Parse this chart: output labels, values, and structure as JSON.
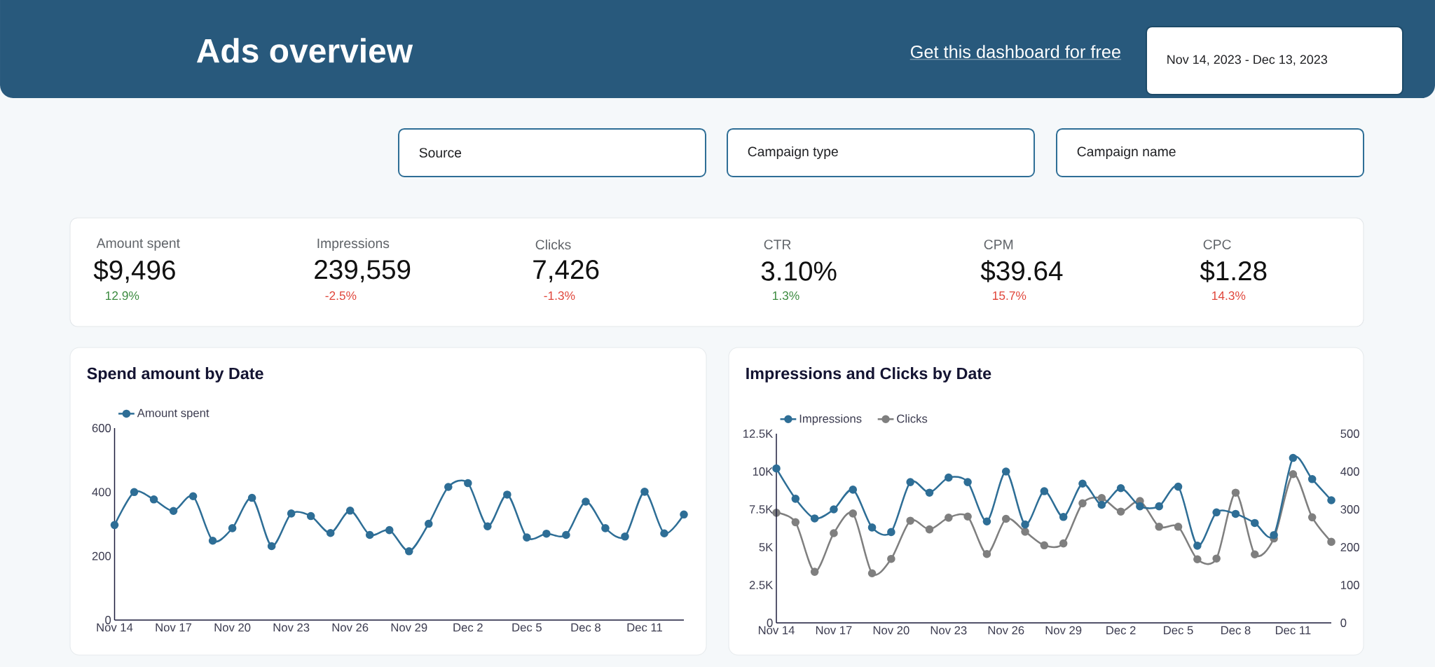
{
  "chart_data": [
    {
      "type": "other",
      "title": "Ads overview",
      "annotations": [
        "Get this dashboard for free",
        "Nov 14, 2023 - Dec 13, 2023",
        "Source",
        "Campaign type",
        "Campaign name"
      ]
    },
    {
      "type": "other",
      "annotations": [
        "Amount spent",
        "$9,496",
        "12.9%",
        "Impressions",
        "239,559",
        "-2.5%",
        "Clicks",
        "7,426",
        "-1.3%",
        "CTR",
        "3.10%",
        "1.3%",
        "CPM",
        "$39.64",
        "15.7%",
        "CPC",
        "$1.28",
        "14.3%"
      ],
      "colors": [
        "#3b8a3f",
        "#e0463b",
        "#e0463b",
        "#3b8a3f",
        "#e0463b",
        "#e0463b"
      ]
    },
    {
      "type": "line",
      "title": "Spend amount by Date",
      "categories": [
        "Nov 14",
        null,
        null,
        "Nov 17",
        null,
        null,
        "Nov 20",
        null,
        null,
        "Nov 23",
        null,
        null,
        "Nov 26",
        null,
        null,
        "Nov 29",
        null,
        null,
        "Dec 2",
        null,
        null,
        "Dec 5",
        null,
        null,
        "Dec 8",
        null,
        null,
        "Dec 11",
        null,
        null
      ],
      "series": [
        {
          "name": "Amount spent",
          "color": "#2e6e96",
          "values": [
            297,
            400,
            377,
            341,
            387,
            248,
            287,
            382,
            231,
            333,
            325,
            272,
            342,
            266,
            281,
            215,
            301,
            416,
            428,
            293,
            392,
            258,
            270,
            266,
            370,
            287,
            261,
            401,
            271,
            330
          ]
        }
      ],
      "ylim": [
        0,
        600
      ],
      "yticks": [
        0,
        200,
        400,
        600
      ],
      "legend": "top left",
      "marker": "circle",
      "line_style": "solid"
    },
    {
      "type": "line",
      "title": "Impressions and Clicks by Date",
      "categories": [
        "Nov 14",
        null,
        null,
        "Nov 17",
        null,
        null,
        "Nov 20",
        null,
        null,
        "Nov 23",
        null,
        null,
        "Nov 26",
        null,
        null,
        "Nov 29",
        null,
        null,
        "Dec 2",
        null,
        null,
        "Dec 5",
        null,
        null,
        "Dec 8",
        null,
        null,
        "Dec 11",
        null,
        null
      ],
      "series": [
        {
          "name": "Impressions",
          "color": "#2e6e96",
          "values": [
            10200,
            8200,
            6900,
            7500,
            8800,
            6300,
            6000,
            9300,
            8600,
            9600,
            9300,
            6700,
            10000,
            6500,
            8700,
            7000,
            9200,
            7800,
            8900,
            7700,
            7700,
            9000,
            5100,
            7300,
            7200,
            6600,
            5800,
            10900,
            9500,
            8100
          ]
        },
        {
          "name": "Clicks",
          "color": "#7f7f7f",
          "axis": "y2",
          "values": [
            291,
            266,
            135,
            237,
            289,
            131,
            169,
            270,
            247,
            278,
            281,
            182,
            275,
            241,
            205,
            210,
            316,
            330,
            294,
            322,
            254,
            254,
            168,
            170,
            344,
            181,
            223,
            393,
            279,
            214
          ]
        }
      ],
      "ylim": [
        0,
        12500
      ],
      "yticks": [
        0,
        {
          "value": 2500,
          "label": "2.5K"
        },
        {
          "value": 5000,
          "label": "5K"
        },
        {
          "value": 7500,
          "label": "7.5K"
        },
        {
          "value": 10000,
          "label": "10K"
        },
        {
          "value": 12500,
          "label": "12.5K"
        }
      ],
      "y2lim": [
        0,
        500
      ],
      "y2ticks": [
        0,
        100,
        200,
        300,
        400,
        500
      ],
      "legend": "top left",
      "marker": "circle",
      "line_style": "solid"
    }
  ]
}
